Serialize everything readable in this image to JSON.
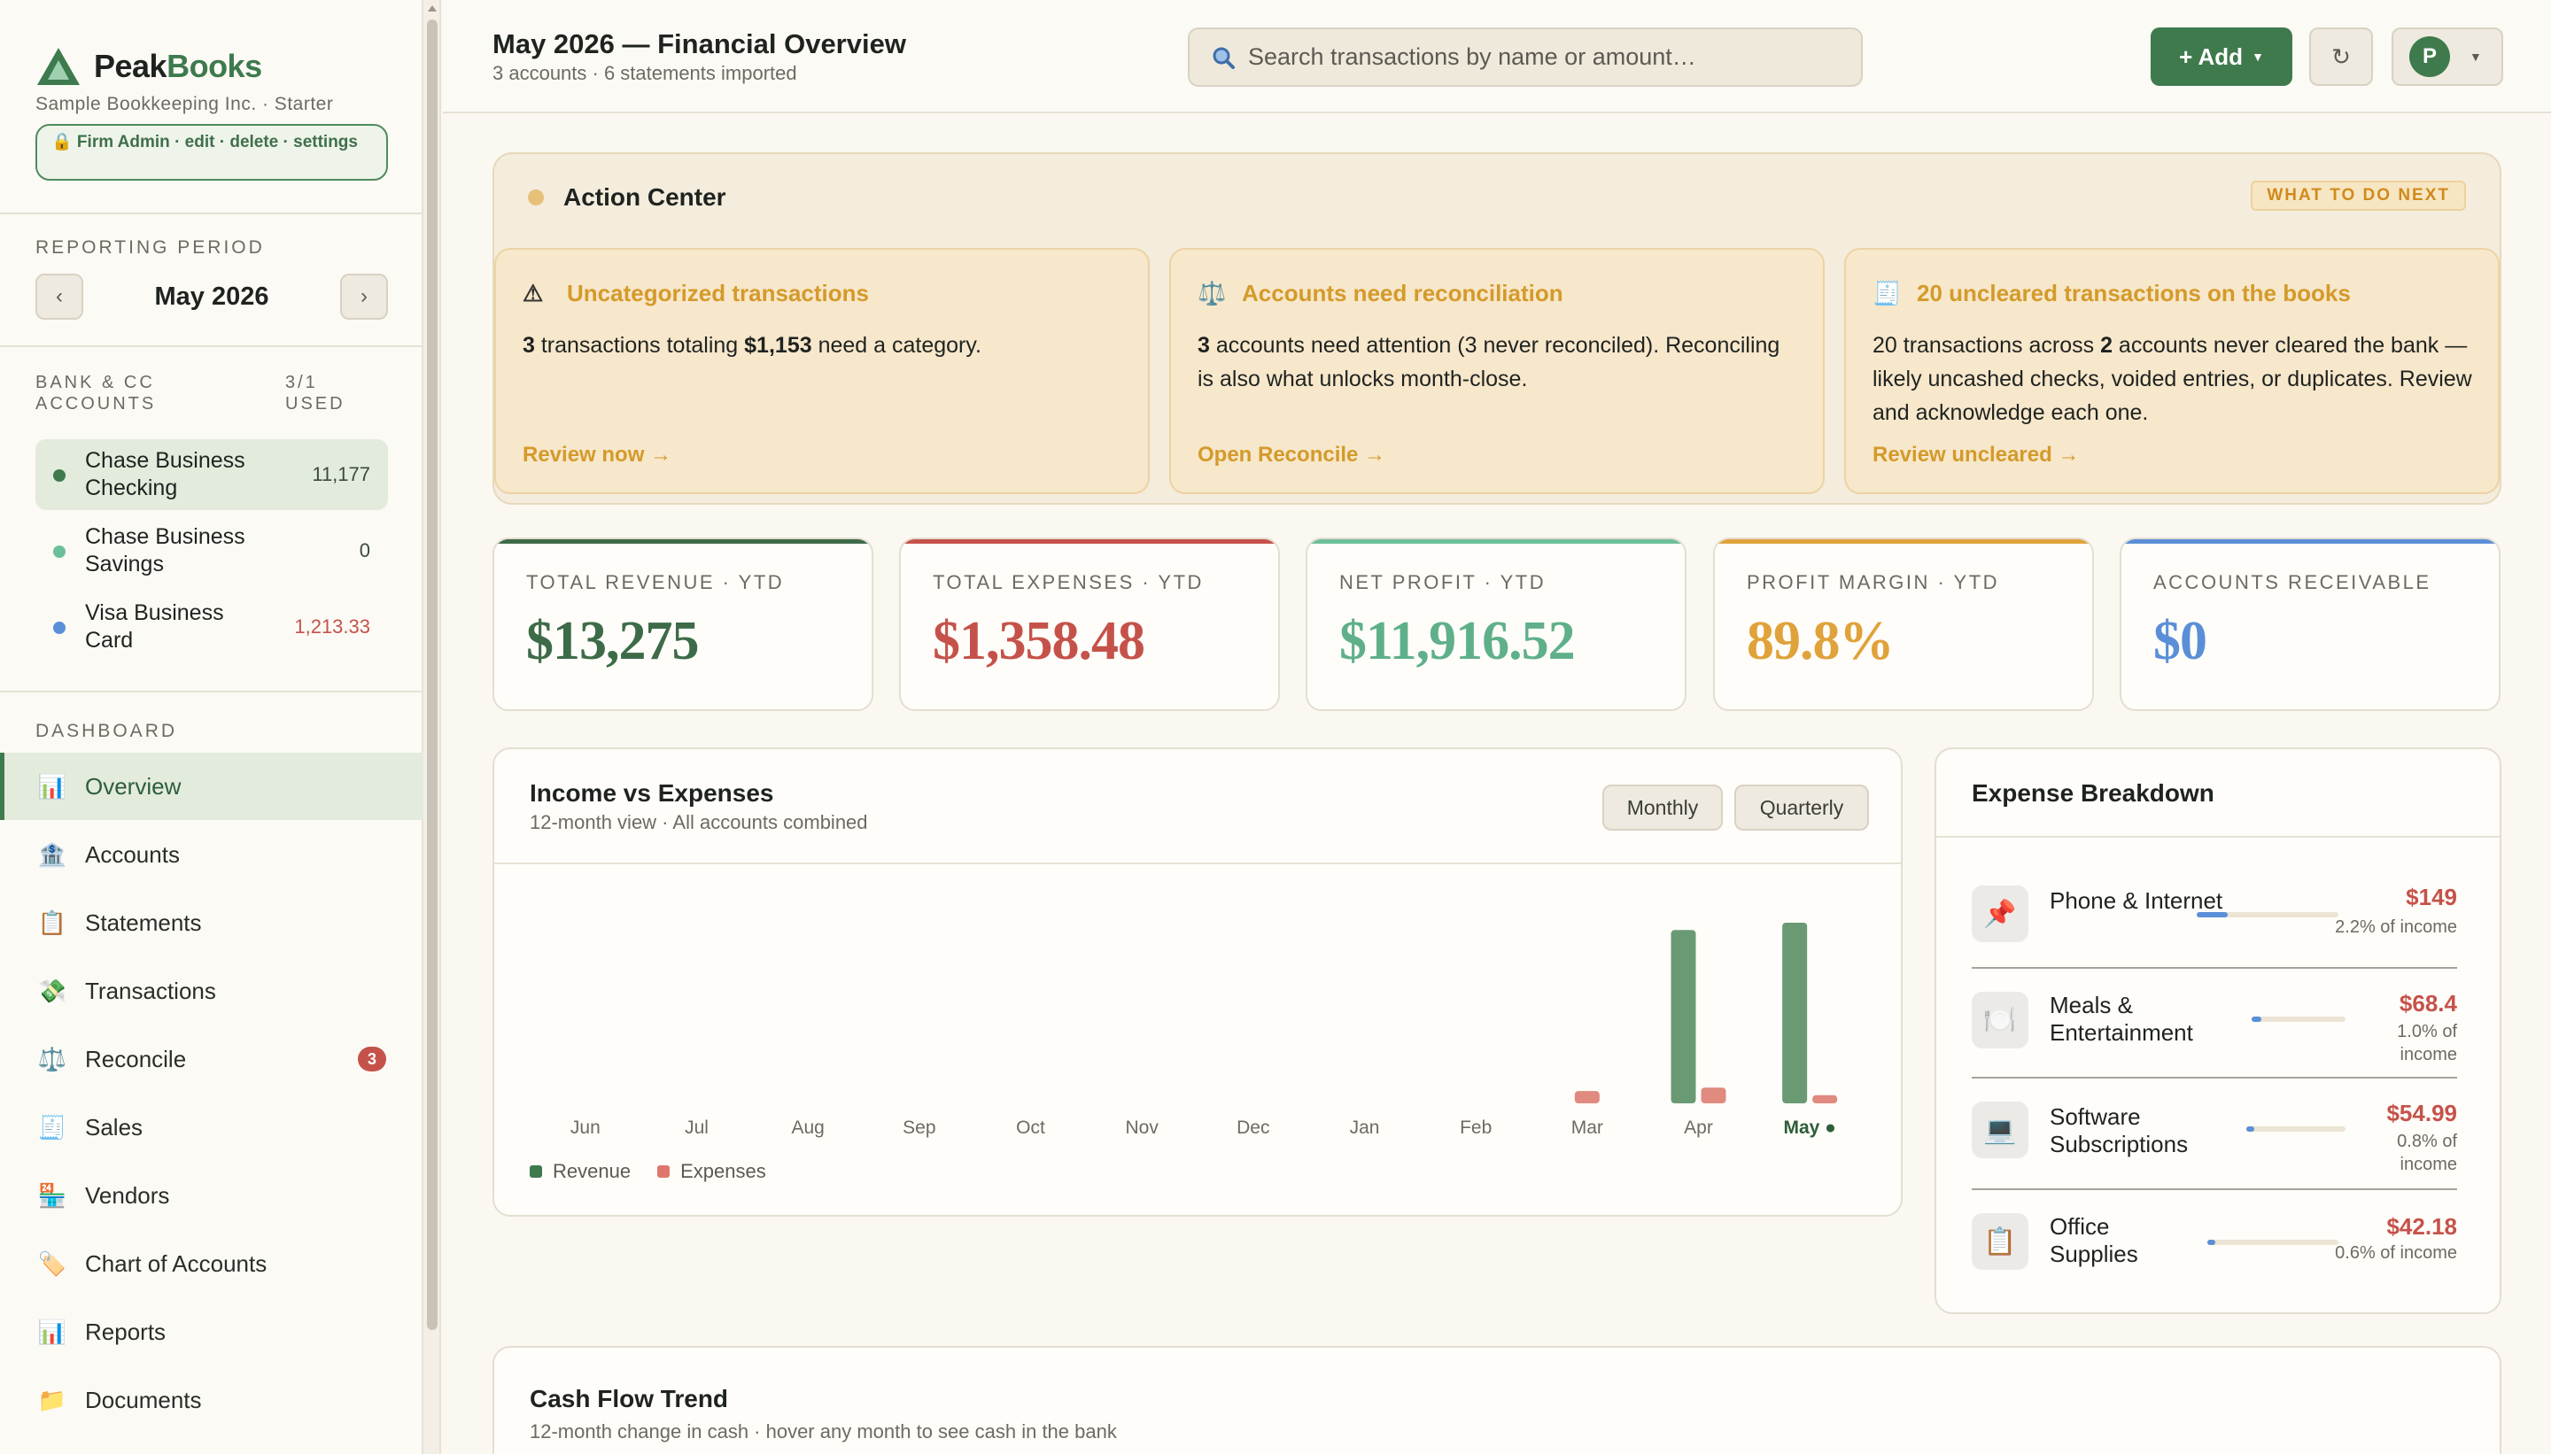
{
  "brand": {
    "name_a": "Peak",
    "name_b": "Books",
    "org": "Sample Bookkeeping Inc. · Starter",
    "role_badge": "🔒 Firm Admin · edit · delete · settings"
  },
  "period": {
    "label": "REPORTING PERIOD",
    "value": "May 2026",
    "prev": "‹",
    "next": "›"
  },
  "accounts": {
    "label": "BANK & CC ACCOUNTS",
    "used": "3/1 USED",
    "items": [
      {
        "name": "Chase Business Checking",
        "balance": "11,177",
        "dot_color": "#3d7a4e"
      },
      {
        "name": "Chase Business Savings",
        "balance": "0",
        "dot_color": "#6dbf9a"
      },
      {
        "name": "Visa Business Card",
        "balance": "1,213.33",
        "dot_color": "#5a8fd8"
      }
    ]
  },
  "nav": {
    "label": "DASHBOARD",
    "items": [
      {
        "label": "Overview",
        "icon": "📊"
      },
      {
        "label": "Accounts",
        "icon": "🏦"
      },
      {
        "label": "Statements",
        "icon": "📋"
      },
      {
        "label": "Transactions",
        "icon": "💸"
      },
      {
        "label": "Reconcile",
        "icon": "⚖️",
        "badge": "3"
      },
      {
        "label": "Sales",
        "icon": "🧾"
      },
      {
        "label": "Vendors",
        "icon": "🏪"
      },
      {
        "label": "Chart of Accounts",
        "icon": "🏷️"
      },
      {
        "label": "Reports",
        "icon": "📊"
      },
      {
        "label": "Documents",
        "icon": "📁"
      }
    ]
  },
  "header": {
    "title": "May 2026 — Financial Overview",
    "subtitle": "3 accounts · 6 statements imported",
    "search_placeholder": "Search transactions by name or amount…",
    "add_label": "+ Add",
    "refresh_icon": "↻",
    "user_initial": "P"
  },
  "action_center": {
    "title": "Action Center",
    "badge": "WHAT TO DO NEXT",
    "cards": [
      {
        "icon": "⚠",
        "title": "Uncategorized transactions",
        "link": "Review now →"
      },
      {
        "icon": "⚖️",
        "title": "Accounts need reconciliation",
        "link": "Open Reconcile →"
      },
      {
        "icon": "🧾",
        "title": "20 uncleared transactions on the books",
        "link": "Review uncleared →"
      }
    ],
    "card1": {
      "n": "3",
      "t1": " transactions totaling ",
      "amount": "$1,153",
      "t2": " need a category."
    },
    "card2": {
      "n": "3",
      "t1": " accounts need attention (3 never reconciled). Reconciling is also what unlocks month-close."
    },
    "card3": {
      "t0": "20 transactions across ",
      "n": "2",
      "t1": " accounts never cleared the bank — likely uncashed checks, voided entries, or duplicates. Review and acknowledge each one."
    }
  },
  "kpis": [
    {
      "label": "TOTAL REVENUE · YTD",
      "value": "$13,275",
      "color": "#3d6b48",
      "bar": "#3d6b48"
    },
    {
      "label": "TOTAL EXPENSES · YTD",
      "value": "$1,358.48",
      "color": "#c5524a",
      "bar": "#c5524a"
    },
    {
      "label": "NET PROFIT · YTD",
      "value": "$11,916.52",
      "color": "#5fb08a",
      "bar": "#6dbf9a"
    },
    {
      "label": "PROFIT MARGIN · YTD",
      "value": "89.8%",
      "color": "#e0a23a",
      "bar": "#e0a23a"
    },
    {
      "label": "ACCOUNTS RECEIVABLE",
      "value": "$0",
      "color": "#5a8fd8",
      "bar": "#5a8fd8"
    }
  ],
  "income_chart": {
    "title": "Income vs Expenses",
    "subtitle": "12-month view · All accounts combined",
    "toggle_monthly": "Monthly",
    "toggle_quarterly": "Quarterly",
    "legend_revenue": "Revenue",
    "legend_expenses": "Expenses",
    "colors": {
      "revenue": "#6a9a74",
      "expenses": "#e08a80"
    }
  },
  "chart_data": {
    "type": "bar",
    "categories": [
      "Jun",
      "Jul",
      "Aug",
      "Sep",
      "Oct",
      "Nov",
      "Dec",
      "Jan",
      "Feb",
      "Mar",
      "Apr",
      "May ●"
    ],
    "series": [
      {
        "name": "Revenue",
        "values": [
          0,
          0,
          0,
          0,
          0,
          0,
          0,
          0,
          0,
          0,
          6500,
          6775
        ]
      },
      {
        "name": "Expenses",
        "values": [
          0,
          0,
          0,
          0,
          0,
          0,
          0,
          0,
          0,
          460,
          590,
          308
        ]
      }
    ],
    "title": "Income vs Expenses",
    "ylim": [
      0,
      6775
    ]
  },
  "breakdown": {
    "title": "Expense Breakdown",
    "items": [
      {
        "name": "Phone & Internet",
        "icon": "📌",
        "amount": "$149",
        "pct": "2.2% of income",
        "share": 0.022
      },
      {
        "name": "Meals & Entertainment",
        "icon": "🍽️",
        "amount": "$68.4",
        "pct": "1.0% of income",
        "share": 0.01
      },
      {
        "name": "Software Subscriptions",
        "icon": "💻",
        "amount": "$54.99",
        "pct": "0.8% of income",
        "share": 0.008
      },
      {
        "name": "Office Supplies",
        "icon": "📋",
        "amount": "$42.18",
        "pct": "0.6% of income",
        "share": 0.006
      }
    ]
  },
  "cashflow": {
    "title": "Cash Flow Trend",
    "subtitle": "12-month change in cash · hover any month to see cash in the bank"
  }
}
